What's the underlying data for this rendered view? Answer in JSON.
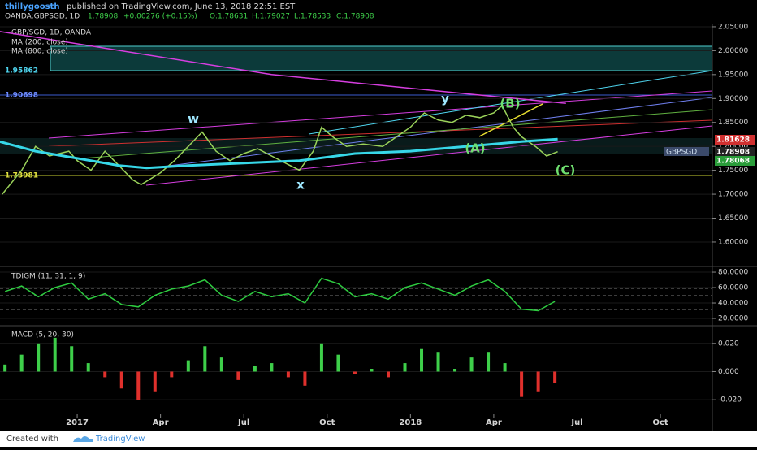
{
  "header": {
    "author": "thillygoosth",
    "published": "published on TradingView.com, June 13, 2018 22:51 EST",
    "symbol": "OANDA:GBPSGD, 1D",
    "last": "1.78908",
    "change": "+0.00276 (+0.15%)",
    "open": "O:1.78631",
    "high": "H:1.79027",
    "low": "L:1.78533",
    "close": "C:1.78908"
  },
  "footer": {
    "created": "Created with",
    "brand": "TradingView"
  },
  "chart_data": [
    {
      "type": "line",
      "title": "GBP/SGD, 1D, OANDA",
      "xlim": [
        -2.78,
        22.87
      ],
      "xticks": [
        {
          "value": 0,
          "label": "2017"
        },
        {
          "value": 3,
          "label": "Apr"
        },
        {
          "value": 6,
          "label": "Jul"
        },
        {
          "value": 9,
          "label": "Oct"
        },
        {
          "value": 12,
          "label": "2018"
        },
        {
          "value": 15,
          "label": "Apr"
        },
        {
          "value": 18,
          "label": "Jul"
        },
        {
          "value": 21,
          "label": "Oct"
        }
      ],
      "ylim": [
        1.549,
        2.055
      ],
      "yticks": [
        {
          "value": 1.6,
          "label": "1.60000"
        },
        {
          "value": 1.65,
          "label": "1.65000"
        },
        {
          "value": 1.7,
          "label": "1.70000"
        },
        {
          "value": 1.75,
          "label": "1.75000"
        },
        {
          "value": 1.8,
          "label": "1.80000"
        },
        {
          "value": 1.85,
          "label": "1.85000"
        },
        {
          "value": 1.9,
          "label": "1.90000"
        },
        {
          "value": 1.95,
          "label": "1.95000"
        },
        {
          "value": 2.0,
          "label": "2.00000"
        },
        {
          "value": 2.05,
          "label": "2.05000"
        }
      ],
      "series": [
        {
          "name": "GBPSGD",
          "color": "#9bd35a",
          "x": [
            -2.7,
            -2.0,
            -1.5,
            -1.0,
            -0.3,
            0,
            0.5,
            1.0,
            1.5,
            2.0,
            2.3,
            3.0,
            3.5,
            4.0,
            4.5,
            5.0,
            5.5,
            6.0,
            6.5,
            7.0,
            7.5,
            8.0,
            8.5,
            8.8,
            9.2,
            9.7,
            10.3,
            11.0,
            11.5,
            12.0,
            12.5,
            13.0,
            13.5,
            14.0,
            14.5,
            15.0,
            15.3,
            15.7,
            16.0,
            16.5,
            16.9,
            17.3
          ],
          "values": [
            1.7,
            1.75,
            1.8,
            1.78,
            1.79,
            1.77,
            1.75,
            1.79,
            1.76,
            1.73,
            1.72,
            1.745,
            1.77,
            1.8,
            1.83,
            1.79,
            1.77,
            1.785,
            1.795,
            1.78,
            1.765,
            1.75,
            1.79,
            1.84,
            1.82,
            1.8,
            1.805,
            1.8,
            1.82,
            1.84,
            1.87,
            1.855,
            1.85,
            1.865,
            1.86,
            1.87,
            1.885,
            1.84,
            1.82,
            1.8,
            1.78,
            1.789
          ]
        },
        {
          "name": "MA (200, close)",
          "color": "#37d7e8",
          "x": [
            -2.8,
            -1.5,
            0,
            1.5,
            2.5,
            4,
            6,
            8,
            10,
            12,
            14,
            16,
            17.3
          ],
          "values": [
            1.81,
            1.79,
            1.775,
            1.76,
            1.755,
            1.76,
            1.765,
            1.77,
            1.785,
            1.79,
            1.8,
            1.81,
            1.815
          ]
        },
        {
          "name": "MA (800, close)",
          "color": "#d63ee0",
          "x": [
            -2.8,
            7,
            14,
            17.6
          ],
          "values": [
            2.04,
            1.95,
            1.91,
            1.89
          ]
        }
      ],
      "annotations": [
        "w",
        "x",
        "y",
        "(B)",
        "(A)",
        "(C)"
      ],
      "price_labels": [
        "1.95862",
        "1.90698",
        "1.73981",
        "1.81628",
        "1.78908",
        "1.78068"
      ]
    },
    {
      "type": "line",
      "title": "TDIGM (11, 31, 1, 9)",
      "ylim": [
        11.6,
        85.3
      ],
      "yticks": [
        {
          "value": 20,
          "label": "20.0000"
        },
        {
          "value": 40,
          "label": "40.0000"
        },
        {
          "value": 60,
          "label": "60.0000"
        },
        {
          "value": 80,
          "label": "80.0000"
        }
      ],
      "series": [
        {
          "color": "#2ecc40",
          "x": [
            -2.6,
            -2.0,
            -1.4,
            -0.8,
            -0.2,
            0.4,
            1.0,
            1.6,
            2.2,
            2.8,
            3.4,
            4.0,
            4.6,
            5.2,
            5.8,
            6.4,
            7.0,
            7.6,
            8.2,
            8.8,
            9.4,
            10.0,
            10.6,
            11.2,
            11.8,
            12.4,
            13.0,
            13.6,
            14.2,
            14.8,
            15.4,
            16.0,
            16.6,
            17.2
          ],
          "values": [
            55,
            62,
            48,
            60,
            66,
            45,
            52,
            38,
            35,
            50,
            58,
            62,
            70,
            50,
            42,
            55,
            48,
            52,
            40,
            72,
            65,
            48,
            52,
            45,
            60,
            66,
            58,
            50,
            62,
            70,
            55,
            32,
            30,
            42
          ]
        }
      ]
    },
    {
      "type": "bar",
      "title": "MACD (5, 20, 30)",
      "ylim": [
        -0.0303,
        0.032
      ],
      "yticks": [
        {
          "value": 0.02,
          "label": "0.020"
        },
        {
          "value": 0,
          "label": "0.000"
        },
        {
          "value": -0.02,
          "label": "-0.020"
        }
      ],
      "colors": {
        "up": "#3ecf4a",
        "down": "#e0302c"
      },
      "x": [
        -2.6,
        -2.0,
        -1.4,
        -0.8,
        -0.2,
        0.4,
        1.0,
        1.6,
        2.2,
        2.8,
        3.4,
        4.0,
        4.6,
        5.2,
        5.8,
        6.4,
        7.0,
        7.6,
        8.2,
        8.8,
        9.4,
        10.0,
        10.6,
        11.2,
        11.8,
        12.4,
        13.0,
        13.6,
        14.2,
        14.8,
        15.4,
        16.0,
        16.6,
        17.2
      ],
      "values": [
        0.005,
        0.012,
        0.02,
        0.024,
        0.018,
        0.006,
        -0.004,
        -0.012,
        -0.02,
        -0.014,
        -0.004,
        0.008,
        0.018,
        0.01,
        -0.006,
        0.004,
        0.006,
        -0.004,
        -0.01,
        0.02,
        0.012,
        -0.002,
        0.002,
        -0.004,
        0.006,
        0.016,
        0.014,
        0.002,
        0.01,
        0.014,
        0.006,
        -0.018,
        -0.014,
        -0.008
      ]
    }
  ]
}
